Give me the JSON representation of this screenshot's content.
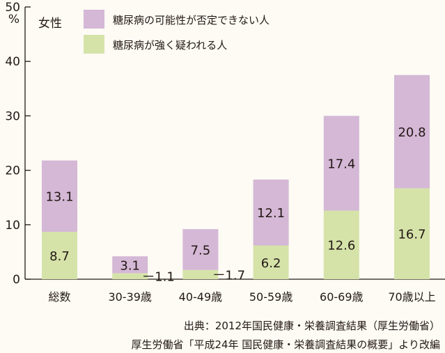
{
  "chart_data": {
    "type": "bar",
    "stacked": true,
    "categories": [
      "総数",
      "30-39歳",
      "40-49歳",
      "50-59歳",
      "60-69歳",
      "70歳以上"
    ],
    "series": [
      {
        "name": "糖尿病が強く疑われる人",
        "values": [
          8.7,
          1.1,
          1.7,
          6.2,
          12.6,
          16.7
        ],
        "color": "#d5e3a9"
      },
      {
        "name": "糖尿病の可能性が否定できない人",
        "values": [
          13.1,
          3.1,
          7.5,
          12.1,
          17.4,
          20.8
        ],
        "color": "#d4b8d6"
      }
    ],
    "ylim": [
      0,
      50
    ],
    "yticks": [
      0,
      10,
      20,
      30,
      40,
      50
    ],
    "yunit": "%",
    "group_label": "女性",
    "legend_position": "top-left",
    "sources": [
      "出典：2012年国民健康・栄養調査結果（厚生労働省）",
      "厚生労働省「平成24年 国民健康・栄養調査結果の概要」より改編"
    ]
  }
}
